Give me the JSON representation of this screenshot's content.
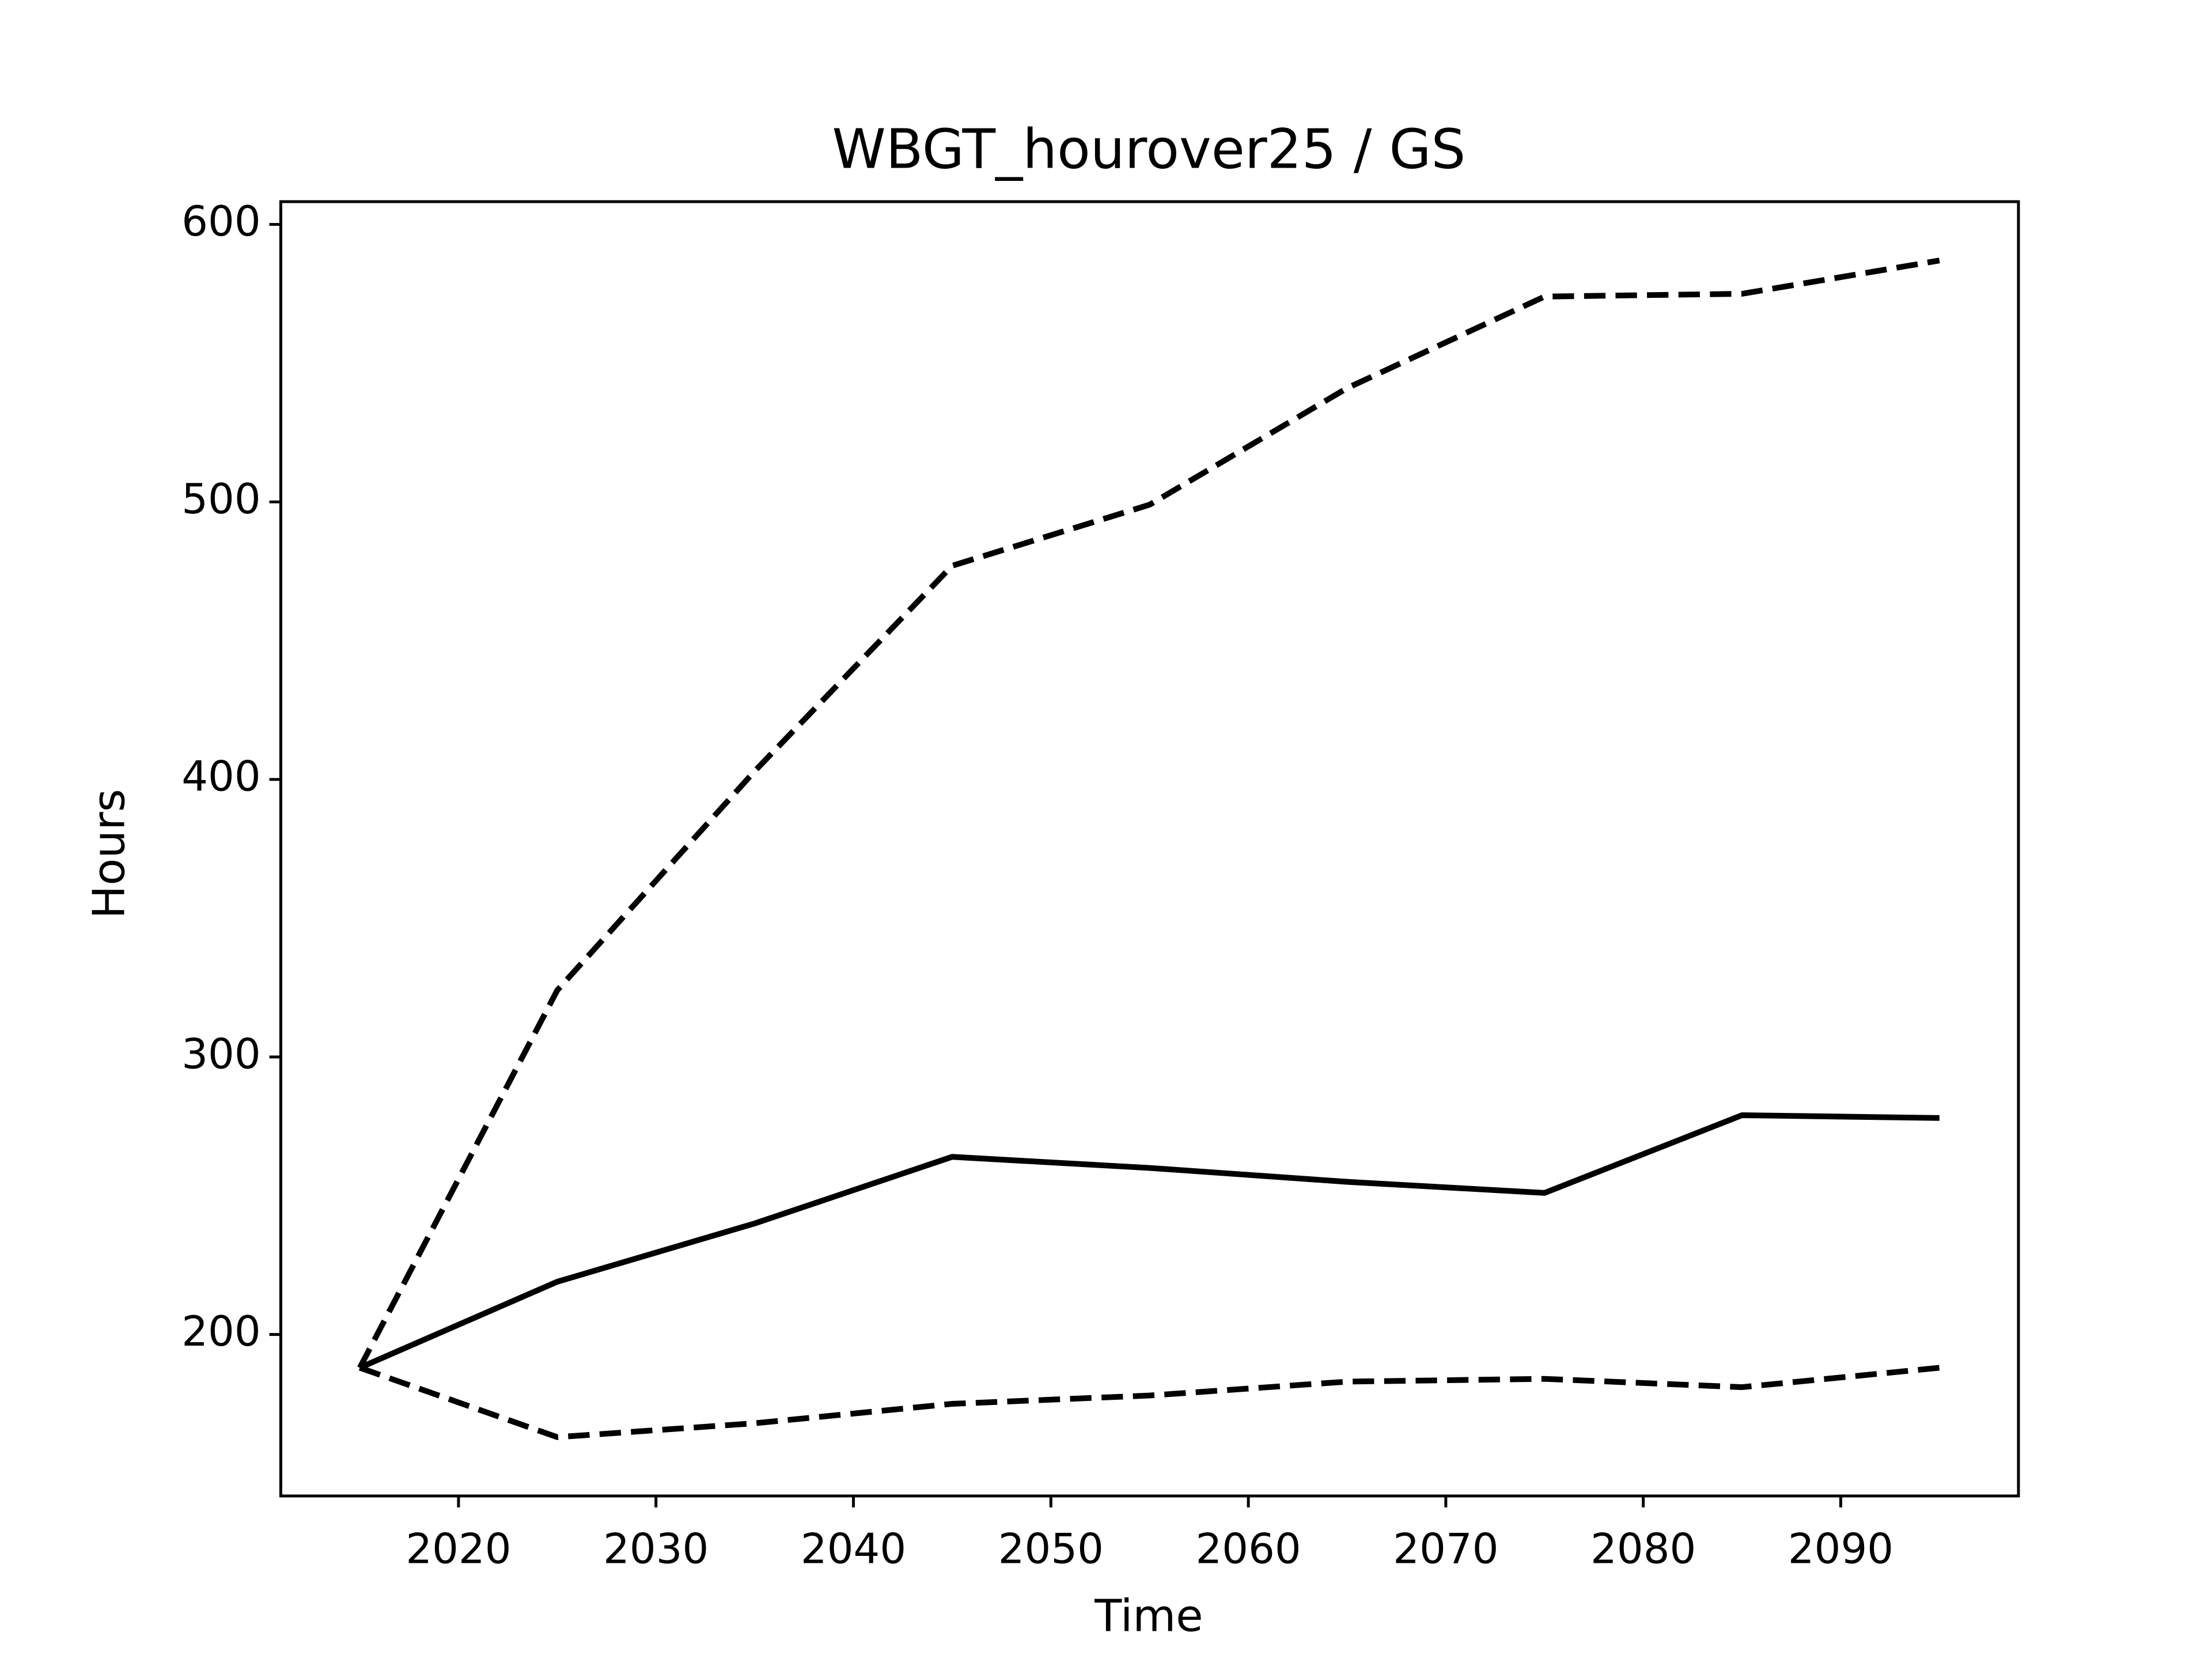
{
  "chart_data": {
    "type": "line",
    "title": "WBGT_hourover25 / GS",
    "xlabel": "Time",
    "ylabel": "Hours",
    "x": [
      2015,
      2025,
      2035,
      2045,
      2055,
      2065,
      2075,
      2085,
      2095
    ],
    "series": [
      {
        "color": "#000000",
        "linestyle": "dashed",
        "values": [
          188,
          324,
          403,
          477,
          499,
          541,
          574,
          575,
          587
        ]
      },
      {
        "color": "#000000",
        "linestyle": "solid",
        "values": [
          188,
          219,
          240,
          264,
          260,
          255,
          251,
          279,
          278
        ]
      },
      {
        "color": "#000000",
        "linestyle": "dashed",
        "values": [
          188,
          163,
          168,
          175,
          178,
          183,
          184,
          181,
          188
        ]
      }
    ],
    "xlim": [
      2011,
      2099
    ],
    "xticks": [
      2020,
      2030,
      2040,
      2050,
      2060,
      2070,
      2080,
      2090
    ],
    "ylim": [
      141.8,
      608.2
    ],
    "yticks": [
      200,
      300,
      400,
      500,
      600
    ],
    "grid": false
  }
}
